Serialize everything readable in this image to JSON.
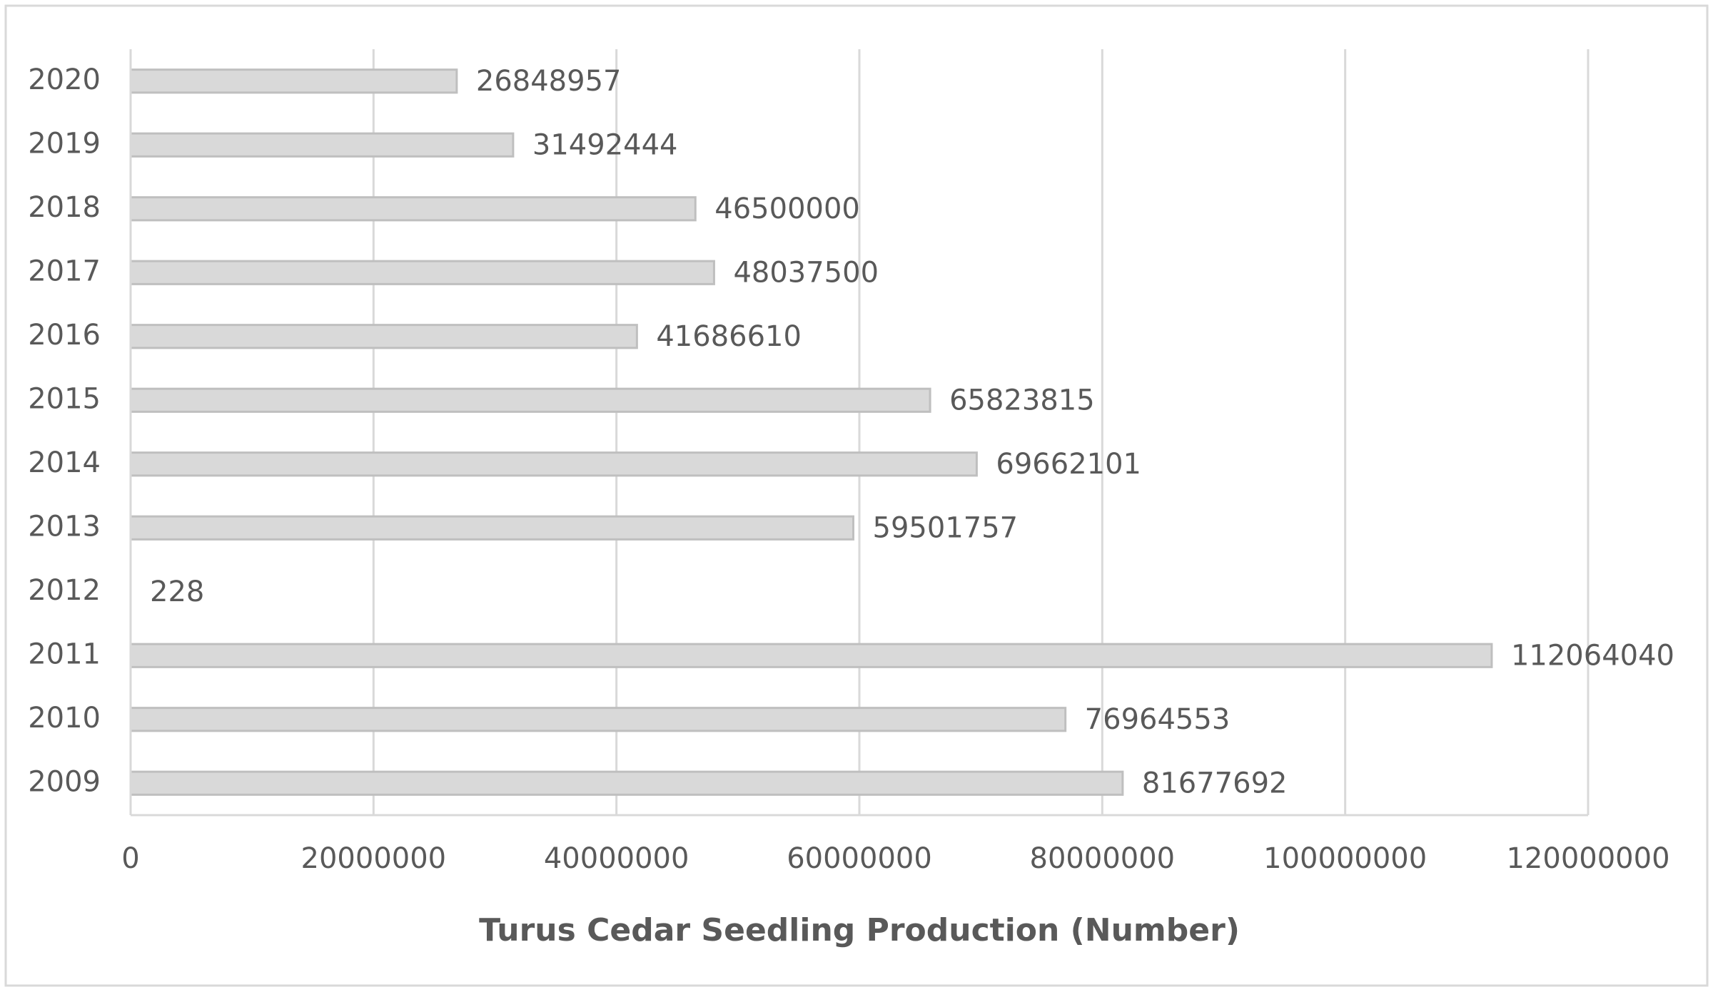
{
  "chart_data": {
    "type": "bar",
    "orientation": "horizontal",
    "x_axis_title": "Turus Cedar Seedling Production (Number)",
    "categories": [
      "2009",
      "2010",
      "2011",
      "2012",
      "2013",
      "2014",
      "2015",
      "2016",
      "2017",
      "2018",
      "2019",
      "2020"
    ],
    "values": [
      81677692,
      76964553,
      112064040,
      228,
      59501757,
      69662101,
      65823815,
      41686610,
      48037500,
      46500000,
      31492444,
      26848957
    ],
    "color": "#d9d9d9",
    "xlim": [
      0,
      120000000
    ],
    "xticks": [
      0,
      20000000,
      40000000,
      60000000,
      80000000,
      100000000,
      120000000
    ],
    "grid": true
  }
}
